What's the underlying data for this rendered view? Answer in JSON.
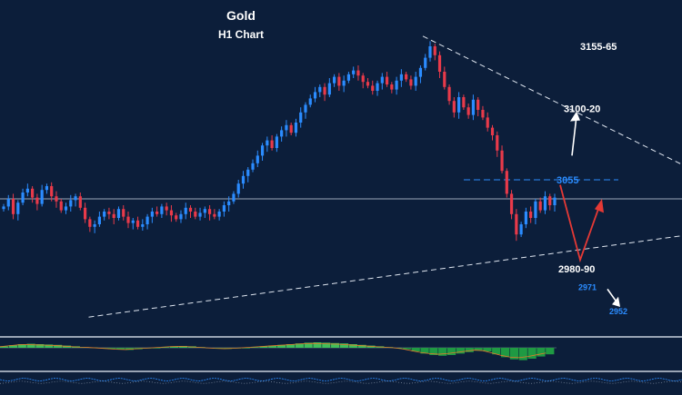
{
  "chart_data": {
    "type": "candlestick",
    "title": "Gold",
    "subtitle": "H1 Chart",
    "y_range": [
      2945,
      3175
    ],
    "colors": {
      "background": "#0c1e3a",
      "bull": "#2b8cff",
      "bear": "#e83a4a",
      "trendline": "#dfe6f0",
      "price_line": "#9aa6b8",
      "level_blue": "#2b8cff",
      "arrow_red": "#e53935",
      "arrow_white": "#ffffff",
      "macd_pos": "#3fbf5a",
      "macd_neg": "#1f9a43"
    },
    "current_price": 3040,
    "upper_trendline": {
      "from": [
        0.62,
        3168
      ],
      "to": [
        1.0,
        3067
      ]
    },
    "lower_trendline": {
      "from": [
        0.13,
        2947
      ],
      "to": [
        1.0,
        3011
      ]
    },
    "candles_close": [
      3034,
      3040,
      3028,
      3037,
      3045,
      3048,
      3041,
      3036,
      3047,
      3050,
      3042,
      3038,
      3031,
      3034,
      3039,
      3042,
      3033,
      3024,
      3018,
      3020,
      3026,
      3030,
      3028,
      3025,
      3032,
      3026,
      3021,
      3023,
      3018,
      3020,
      3026,
      3030,
      3028,
      3034,
      3031,
      3027,
      3024,
      3028,
      3033,
      3030,
      3026,
      3029,
      3032,
      3028,
      3026,
      3030,
      3035,
      3038,
      3044,
      3052,
      3058,
      3063,
      3068,
      3074,
      3082,
      3086,
      3080,
      3089,
      3094,
      3098,
      3092,
      3100,
      3108,
      3114,
      3119,
      3124,
      3128,
      3122,
      3131,
      3136,
      3129,
      3133,
      3138,
      3141,
      3137,
      3132,
      3129,
      3125,
      3131,
      3136,
      3130,
      3126,
      3133,
      3138,
      3134,
      3129,
      3136,
      3143,
      3151,
      3160,
      3153,
      3140,
      3128,
      3117,
      3108,
      3120,
      3112,
      3106,
      3118,
      3110,
      3104,
      3096,
      3090,
      3078,
      3062,
      3044,
      3028,
      3012,
      3020,
      3030,
      3025,
      3038,
      3031,
      3042,
      3035,
      3041
    ],
    "levels": [
      {
        "label": "3155-65",
        "price": 3160,
        "color": "white"
      },
      {
        "label": "3100-20",
        "price": 3111,
        "color": "white"
      },
      {
        "label": "3055",
        "price": 3055,
        "color": "blue"
      },
      {
        "label": "2980-90",
        "price": 2985,
        "color": "white"
      },
      {
        "label": "2971",
        "price": 2971,
        "color": "blue"
      },
      {
        "label": "2952",
        "price": 2952,
        "color": "blue"
      }
    ],
    "macd_histogram": [
      0.2,
      0.35,
      0.5,
      0.55,
      0.5,
      0.45,
      0.4,
      0.3,
      0.2,
      0.1,
      0.05,
      -0.05,
      -0.15,
      -0.25,
      -0.3,
      -0.2,
      -0.1,
      0.0,
      0.1,
      0.2,
      0.25,
      0.2,
      0.1,
      0.0,
      -0.1,
      -0.15,
      -0.1,
      0.0,
      0.1,
      0.2,
      0.3,
      0.4,
      0.5,
      0.6,
      0.7,
      0.75,
      0.7,
      0.65,
      0.6,
      0.5,
      0.4,
      0.3,
      0.2,
      0.1,
      0.0,
      -0.2,
      -0.5,
      -0.8,
      -1.0,
      -1.1,
      -1.0,
      -0.8,
      -0.6,
      -0.4,
      -0.5,
      -0.9,
      -1.3,
      -1.6,
      -1.7,
      -1.5,
      -1.2,
      -0.9
    ]
  }
}
